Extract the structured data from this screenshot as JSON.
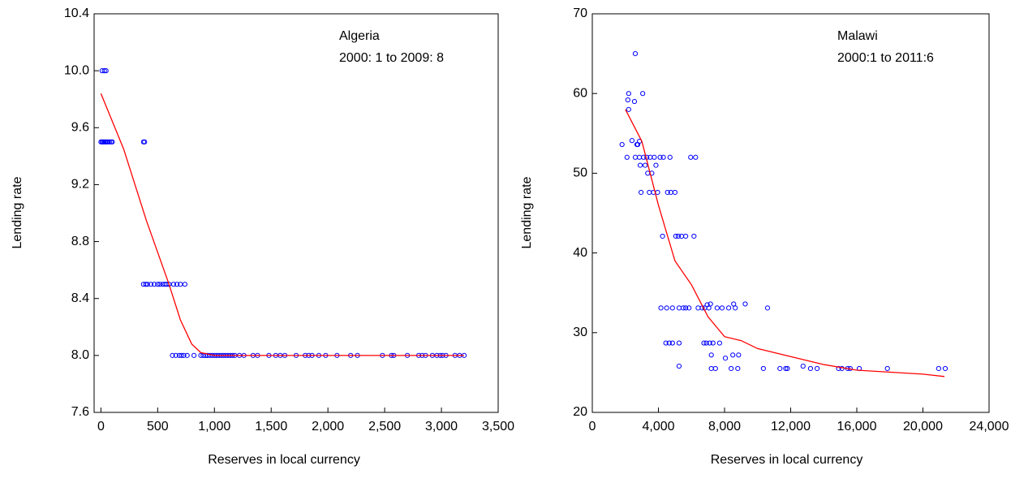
{
  "chart_data": [
    {
      "type": "scatter",
      "annotations": [
        "Algeria",
        "2000: 1 to 2009: 8"
      ],
      "x_label": "Reserves in local currency",
      "y_label": "Lending rate",
      "xlim": [
        -60,
        3500
      ],
      "ylim": [
        7.6,
        10.4
      ],
      "xticks": [
        0,
        500,
        {
          "value": 1000,
          "label": "1,000"
        },
        {
          "value": 1500,
          "label": "1,500"
        },
        {
          "value": 2000,
          "label": "2,000"
        },
        {
          "value": 2500,
          "label": "2,500"
        },
        {
          "value": 3000,
          "label": "3,000"
        },
        {
          "value": 3500,
          "label": "3,500"
        }
      ],
      "yticks": [
        7.6,
        {
          "value": 8,
          "label": "8.0"
        },
        8.4,
        8.8,
        9.2,
        9.6,
        {
          "value": 10,
          "label": "10.0"
        },
        10.4
      ],
      "series": [
        {
          "type": "scatter",
          "color": "#0000ff",
          "x": [
            10,
            30,
            45,
            0,
            10,
            20,
            30,
            40,
            50,
            60,
            75,
            90,
            100,
            375,
            385,
            375,
            395,
            410,
            440,
            470,
            500,
            520,
            545,
            565,
            580,
            600,
            640,
            670,
            700,
            740,
            630,
            660,
            690,
            710,
            730,
            760,
            820,
            880,
            900,
            920,
            940,
            960,
            980,
            1000,
            1020,
            1040,
            1060,
            1080,
            1100,
            1120,
            1140,
            1160,
            1180,
            1220,
            1260,
            1340,
            1380,
            1480,
            1540,
            1580,
            1620,
            1720,
            1800,
            1830,
            1860,
            1920,
            1980,
            2080,
            2200,
            2260,
            2480,
            2560,
            2580,
            2700,
            2800,
            2830,
            2860,
            2920,
            2960,
            2990,
            3010,
            3040,
            3120,
            3160,
            3200
          ],
          "values": [
            10,
            10,
            10,
            9.5,
            9.5,
            9.5,
            9.5,
            9.5,
            9.5,
            9.5,
            9.5,
            9.5,
            9.5,
            9.5,
            9.5,
            8.5,
            8.5,
            8.5,
            8.5,
            8.5,
            8.5,
            8.5,
            8.5,
            8.5,
            8.5,
            8.5,
            8.5,
            8.5,
            8.5,
            8.5,
            8,
            8,
            8,
            8,
            8,
            8,
            8,
            8,
            8,
            8,
            8,
            8,
            8,
            8,
            8,
            8,
            8,
            8,
            8,
            8,
            8,
            8,
            8,
            8,
            8,
            8,
            8,
            8,
            8,
            8,
            8,
            8,
            8,
            8,
            8,
            8,
            8,
            8,
            8,
            8,
            8,
            8,
            8,
            8,
            8,
            8,
            8,
            8,
            8,
            8,
            8,
            8,
            8,
            8,
            8
          ]
        },
        {
          "type": "line",
          "color": "#ff0000",
          "x": [
            0,
            200,
            400,
            600,
            700,
            800,
            880,
            1000,
            3200
          ],
          "values": [
            9.84,
            9.45,
            8.95,
            8.5,
            8.25,
            8.08,
            8.02,
            8.0,
            8.0
          ]
        }
      ]
    },
    {
      "type": "scatter",
      "annotations": [
        "Malawi",
        "2000:1 to 2011:6"
      ],
      "x_label": "Reserves in local currency",
      "y_label": "Lending rate",
      "xlim": [
        0,
        24000
      ],
      "ylim": [
        20,
        70
      ],
      "xticks": [
        0,
        {
          "value": 4000,
          "label": "4,000"
        },
        {
          "value": 8000,
          "label": "8,000"
        },
        {
          "value": 12000,
          "label": "12,000"
        },
        {
          "value": 16000,
          "label": "16,000"
        },
        {
          "value": 20000,
          "label": "20,000"
        },
        {
          "value": 24000,
          "label": "24,000"
        }
      ],
      "yticks": [
        20,
        30,
        40,
        50,
        60,
        70
      ],
      "series": [
        {
          "type": "scatter",
          "color": "#0000ff",
          "x": [
            1800,
            2100,
            2150,
            2200,
            2200,
            2400,
            2550,
            2600,
            2600,
            2700,
            2750,
            2850,
            2850,
            2900,
            2950,
            3050,
            3100,
            3200,
            3300,
            3350,
            3450,
            3500,
            3600,
            3700,
            3750,
            3850,
            3950,
            4100,
            4150,
            4250,
            4300,
            4450,
            4500,
            4550,
            4650,
            4700,
            4750,
            4850,
            4850,
            5000,
            5050,
            5200,
            5250,
            5250,
            5250,
            5400,
            5500,
            5650,
            5650,
            5850,
            5950,
            6150,
            6250,
            6400,
            6650,
            6750,
            6800,
            6900,
            6950,
            7050,
            7100,
            7150,
            7200,
            7200,
            7300,
            7450,
            7550,
            7700,
            7850,
            8050,
            8250,
            8400,
            8500,
            8550,
            8650,
            8800,
            8850,
            9250,
            10350,
            10600,
            11350,
            11700,
            11800,
            12750,
            13200,
            13600,
            14900,
            15100,
            15450,
            15600,
            16150,
            17850,
            20950,
            21350
          ],
          "values": [
            53.6,
            52,
            59.2,
            60,
            58,
            54.1,
            59,
            65,
            52,
            53.6,
            53.6,
            54,
            52,
            51,
            47.6,
            60,
            52,
            51,
            52,
            50,
            47.6,
            52,
            50,
            47.6,
            52,
            51,
            47.6,
            52,
            33.1,
            42.1,
            52,
            28.7,
            33.1,
            47.6,
            28.7,
            52,
            47.6,
            28.7,
            33.1,
            47.6,
            42.1,
            42.1,
            33.1,
            25.8,
            28.7,
            42.1,
            33.1,
            33.1,
            42.1,
            33.1,
            52,
            42.1,
            52,
            33.1,
            33.1,
            28.7,
            33.1,
            28.7,
            33.5,
            33.1,
            28.7,
            33.6,
            27.2,
            25.5,
            28.7,
            25.5,
            33.1,
            28.7,
            33.1,
            26.8,
            33.1,
            25.5,
            27.2,
            33.6,
            33.1,
            25.5,
            27.2,
            33.6,
            25.5,
            33.1,
            25.5,
            25.5,
            25.5,
            25.8,
            25.5,
            25.5,
            25.5,
            25.5,
            25.5,
            25.5,
            25.5,
            25.5,
            25.5,
            25.5
          ]
        },
        {
          "type": "line",
          "color": "#ff0000",
          "x": [
            2000,
            3000,
            4000,
            5000,
            6000,
            7000,
            8000,
            9000,
            10000,
            12000,
            14000,
            16000,
            20000,
            21300
          ],
          "values": [
            58,
            54,
            46,
            39,
            36,
            32,
            29.5,
            29,
            28,
            27,
            26,
            25.3,
            24.8,
            24.5
          ]
        }
      ]
    }
  ]
}
